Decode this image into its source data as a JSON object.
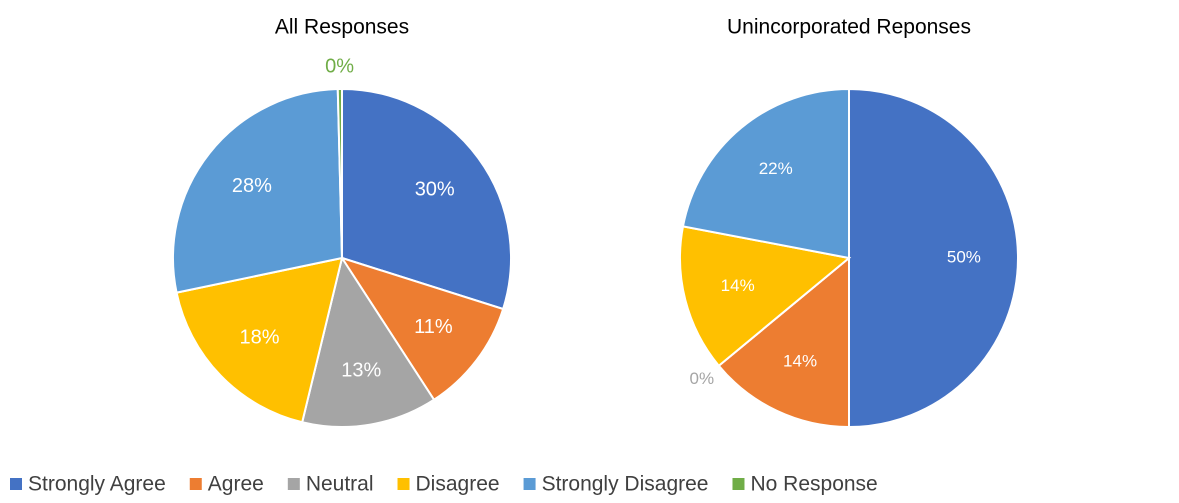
{
  "chart_data": [
    {
      "type": "pie",
      "title": "All Responses",
      "categories": [
        "Strongly Agree",
        "Agree",
        "Neutral",
        "Disagree",
        "Strongly Disagree",
        "No Response"
      ],
      "values": [
        30,
        11,
        13,
        18,
        28,
        0.4
      ],
      "value_labels": [
        "30%",
        "11%",
        "13%",
        "18%",
        "28%",
        "0%"
      ],
      "colors": [
        "#4472c4",
        "#ed7d31",
        "#a5a5a5",
        "#ffc000",
        "#5b9bd5",
        "#70ad47"
      ]
    },
    {
      "type": "pie",
      "title": "Unincorporated Reponses",
      "categories": [
        "Strongly Agree",
        "Agree",
        "Neutral",
        "Disagree",
        "Strongly Disagree",
        "No Response"
      ],
      "values": [
        50,
        14,
        0,
        14,
        22,
        0
      ],
      "value_labels": [
        "50%",
        "14%",
        "0%",
        "14%",
        "22%",
        null
      ],
      "colors": [
        "#4472c4",
        "#ed7d31",
        "#a5a5a5",
        "#ffc000",
        "#5b9bd5",
        "#70ad47"
      ]
    }
  ]
}
